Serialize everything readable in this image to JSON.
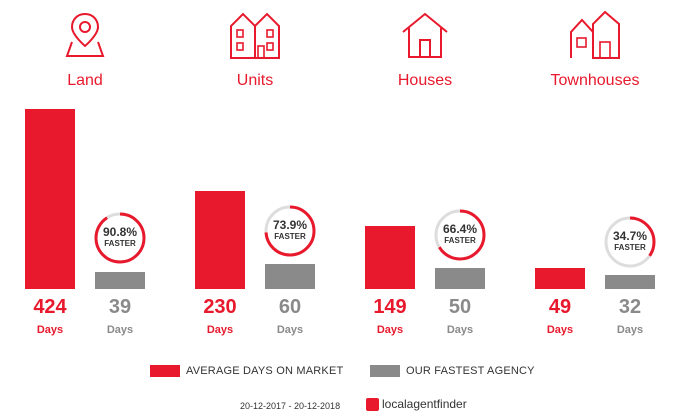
{
  "chart_data": {
    "type": "bar",
    "categories": [
      "Land",
      "Units",
      "Houses",
      "Townhouses"
    ],
    "series": [
      {
        "name": "AVERAGE DAYS ON MARKET",
        "values": [
          424,
          230,
          149,
          49
        ]
      },
      {
        "name": "OUR FASTEST AGENCY",
        "values": [
          39,
          60,
          50,
          32
        ]
      }
    ],
    "faster_pct": [
      90.8,
      73.9,
      66.4,
      34.7
    ],
    "faster_label": "FASTER",
    "unit_label": "Days",
    "colors": {
      "primary": "#e8192c",
      "secondary": "#8a8a8a",
      "ring_track": "#dddddd"
    }
  },
  "labels": {
    "land": "Land",
    "units": "Units",
    "houses": "Houses",
    "townhouses": "Townhouses",
    "days": "Days",
    "faster": "FASTER",
    "v_land_avg": "424",
    "v_land_fast": "39",
    "v_units_avg": "230",
    "v_units_fast": "60",
    "v_houses_avg": "149",
    "v_houses_fast": "50",
    "v_town_avg": "49",
    "v_town_fast": "32",
    "p_land": "90.8%",
    "p_units": "73.9%",
    "p_houses": "66.4%",
    "p_town": "34.7%"
  },
  "legend": {
    "avg": "AVERAGE DAYS ON MARKET",
    "fastest": "OUR FASTEST AGENCY"
  },
  "footer": {
    "date_range": "20-12-2017 - 20-12-2018",
    "brand": "localagentfinder"
  },
  "icons": [
    "map-pin-icon",
    "units-icon",
    "house-icon",
    "townhouses-icon"
  ]
}
